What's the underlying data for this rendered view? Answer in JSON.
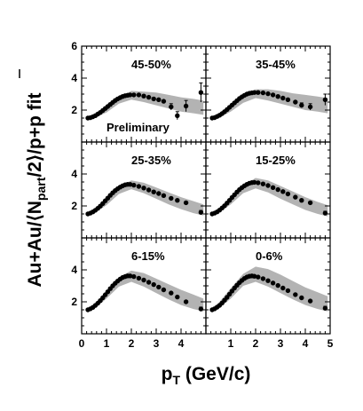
{
  "figure": {
    "ylabel_main": "Au+Au/⟨N",
    "ylabel_sub": "part",
    "ylabel_tail": "/2⟩/p+p fit",
    "xlabel_main": "p",
    "xlabel_sub": "T",
    "xlabel_tail": " (GeV/c)",
    "annotation": "Preliminary"
  },
  "chart_data": {
    "type": "scatter",
    "layout": "3 rows x 2 columns, shared axes",
    "xlabel": "pT (GeV/c)",
    "ylabel": "Au+Au/⟨Npart/2⟩/p+p fit",
    "xlim": [
      0,
      5
    ],
    "ylim": [
      0,
      6
    ],
    "x_ticks": [
      0,
      1,
      2,
      3,
      4,
      5
    ],
    "y_ticks": [
      2,
      4,
      6
    ],
    "colors": {
      "points": "#000000",
      "band": "#b3b3b3"
    },
    "panels": [
      {
        "label": "45-50%",
        "x": [
          0.25,
          0.35,
          0.45,
          0.55,
          0.65,
          0.75,
          0.85,
          0.95,
          1.05,
          1.15,
          1.25,
          1.35,
          1.45,
          1.55,
          1.65,
          1.75,
          1.85,
          1.95,
          2.1,
          2.3,
          2.5,
          2.7,
          2.9,
          3.1,
          3.3,
          3.6,
          3.85,
          4.2,
          4.8
        ],
        "y": [
          1.5,
          1.52,
          1.58,
          1.65,
          1.75,
          1.85,
          1.97,
          2.1,
          2.22,
          2.35,
          2.48,
          2.6,
          2.7,
          2.78,
          2.85,
          2.9,
          2.93,
          2.95,
          2.95,
          2.95,
          2.88,
          2.8,
          2.7,
          2.65,
          2.55,
          2.2,
          1.65,
          2.25,
          3.1
        ],
        "yerr": [
          0,
          0,
          0,
          0,
          0,
          0,
          0,
          0,
          0,
          0,
          0,
          0,
          0,
          0,
          0,
          0,
          0,
          0,
          0,
          0,
          0,
          0,
          0,
          0,
          0,
          0.2,
          0.25,
          0.35,
          0.6
        ],
        "band_x": [
          0.25,
          0.5,
          1.0,
          1.5,
          2.0,
          2.5,
          3.0,
          3.5,
          4.0,
          4.5,
          4.9
        ],
        "band_low": [
          1.4,
          1.5,
          1.85,
          2.4,
          2.65,
          2.5,
          2.3,
          2.1,
          1.9,
          1.8,
          1.7
        ],
        "band_high": [
          1.6,
          1.7,
          2.25,
          2.8,
          3.2,
          3.15,
          3.1,
          2.95,
          2.8,
          2.7,
          2.6
        ]
      },
      {
        "label": "35-45%",
        "x": [
          0.25,
          0.35,
          0.45,
          0.55,
          0.65,
          0.75,
          0.85,
          0.95,
          1.05,
          1.15,
          1.25,
          1.35,
          1.45,
          1.55,
          1.65,
          1.75,
          1.85,
          1.95,
          2.1,
          2.3,
          2.5,
          2.7,
          2.9,
          3.1,
          3.3,
          3.6,
          3.85,
          4.2,
          4.8
        ],
        "y": [
          1.5,
          1.53,
          1.6,
          1.68,
          1.78,
          1.9,
          2.03,
          2.17,
          2.31,
          2.45,
          2.59,
          2.72,
          2.83,
          2.92,
          3.0,
          3.05,
          3.08,
          3.1,
          3.1,
          3.08,
          3.02,
          2.95,
          2.85,
          2.75,
          2.65,
          2.5,
          2.3,
          2.2,
          2.65
        ],
        "yerr": [
          0,
          0,
          0,
          0,
          0,
          0,
          0,
          0,
          0,
          0,
          0,
          0,
          0,
          0,
          0,
          0,
          0,
          0,
          0,
          0,
          0,
          0,
          0,
          0,
          0,
          0,
          0.15,
          0.2,
          0.35
        ],
        "band_x": [
          0.25,
          0.5,
          1.0,
          1.5,
          2.0,
          2.5,
          3.0,
          3.5,
          4.0,
          4.5,
          4.9
        ],
        "band_low": [
          1.4,
          1.5,
          1.9,
          2.45,
          2.75,
          2.6,
          2.4,
          2.2,
          2.0,
          1.9,
          1.8
        ],
        "band_high": [
          1.6,
          1.72,
          2.3,
          2.9,
          3.3,
          3.3,
          3.2,
          3.05,
          2.95,
          2.85,
          2.75
        ]
      },
      {
        "label": "25-35%",
        "x": [
          0.25,
          0.35,
          0.45,
          0.55,
          0.65,
          0.75,
          0.85,
          0.95,
          1.05,
          1.15,
          1.25,
          1.35,
          1.45,
          1.55,
          1.65,
          1.75,
          1.85,
          1.95,
          2.1,
          2.3,
          2.5,
          2.7,
          2.9,
          3.1,
          3.3,
          3.6,
          3.85,
          4.2,
          4.8
        ],
        "y": [
          1.5,
          1.55,
          1.63,
          1.73,
          1.85,
          1.99,
          2.15,
          2.32,
          2.49,
          2.66,
          2.82,
          2.96,
          3.08,
          3.18,
          3.26,
          3.32,
          3.35,
          3.35,
          3.3,
          3.22,
          3.12,
          3.0,
          2.88,
          2.78,
          2.65,
          2.48,
          2.35,
          2.2,
          1.6
        ],
        "yerr": [
          0,
          0,
          0,
          0,
          0,
          0,
          0,
          0,
          0,
          0,
          0,
          0,
          0,
          0,
          0,
          0,
          0,
          0,
          0,
          0,
          0,
          0,
          0,
          0,
          0,
          0,
          0,
          0,
          0.12
        ],
        "band_x": [
          0.25,
          0.5,
          1.0,
          1.5,
          2.0,
          2.5,
          3.0,
          3.5,
          4.0,
          4.5,
          4.9
        ],
        "band_low": [
          1.4,
          1.55,
          2.05,
          2.75,
          3.05,
          2.8,
          2.45,
          2.1,
          1.8,
          1.55,
          1.4
        ],
        "band_high": [
          1.6,
          1.8,
          2.5,
          3.2,
          3.6,
          3.45,
          3.15,
          2.85,
          2.55,
          2.3,
          2.1
        ]
      },
      {
        "label": "15-25%",
        "x": [
          0.25,
          0.35,
          0.45,
          0.55,
          0.65,
          0.75,
          0.85,
          0.95,
          1.05,
          1.15,
          1.25,
          1.35,
          1.45,
          1.55,
          1.65,
          1.75,
          1.85,
          1.95,
          2.1,
          2.3,
          2.5,
          2.7,
          2.9,
          3.1,
          3.3,
          3.6,
          3.85,
          4.2,
          4.8
        ],
        "y": [
          1.5,
          1.55,
          1.63,
          1.74,
          1.87,
          2.01,
          2.18,
          2.35,
          2.53,
          2.7,
          2.87,
          3.02,
          3.15,
          3.26,
          3.35,
          3.42,
          3.46,
          3.48,
          3.45,
          3.38,
          3.28,
          3.15,
          3.02,
          2.9,
          2.75,
          2.55,
          2.35,
          2.2,
          1.55
        ],
        "yerr": [
          0,
          0,
          0,
          0,
          0,
          0,
          0,
          0,
          0,
          0,
          0,
          0,
          0,
          0,
          0,
          0,
          0,
          0,
          0,
          0,
          0,
          0,
          0,
          0,
          0,
          0,
          0,
          0,
          0.12
        ],
        "band_x": [
          0.25,
          0.5,
          1.0,
          1.5,
          2.0,
          2.5,
          3.0,
          3.5,
          4.0,
          4.5,
          4.9
        ],
        "band_low": [
          1.4,
          1.55,
          2.1,
          2.8,
          3.1,
          2.85,
          2.45,
          2.1,
          1.75,
          1.5,
          1.35
        ],
        "band_high": [
          1.6,
          1.82,
          2.55,
          3.3,
          3.75,
          3.6,
          3.25,
          2.9,
          2.55,
          2.25,
          2.05
        ]
      },
      {
        "label": "6-15%",
        "x": [
          0.25,
          0.35,
          0.45,
          0.55,
          0.65,
          0.75,
          0.85,
          0.95,
          1.05,
          1.15,
          1.25,
          1.35,
          1.45,
          1.55,
          1.65,
          1.75,
          1.85,
          1.95,
          2.1,
          2.3,
          2.5,
          2.7,
          2.9,
          3.1,
          3.3,
          3.6,
          3.85,
          4.2,
          4.8
        ],
        "y": [
          1.5,
          1.56,
          1.65,
          1.77,
          1.91,
          2.07,
          2.25,
          2.44,
          2.63,
          2.82,
          3.0,
          3.16,
          3.3,
          3.42,
          3.52,
          3.58,
          3.62,
          3.62,
          3.58,
          3.48,
          3.36,
          3.22,
          3.08,
          2.92,
          2.75,
          2.55,
          2.3,
          2.0,
          1.55
        ],
        "yerr": [
          0,
          0,
          0,
          0,
          0,
          0,
          0,
          0,
          0,
          0,
          0,
          0,
          0,
          0,
          0,
          0,
          0,
          0,
          0,
          0,
          0,
          0,
          0,
          0,
          0,
          0,
          0,
          0,
          0.12
        ],
        "band_x": [
          0.25,
          0.5,
          1.0,
          1.5,
          2.0,
          2.5,
          3.0,
          3.5,
          4.0,
          4.5,
          4.9
        ],
        "band_low": [
          1.4,
          1.55,
          2.2,
          2.95,
          3.25,
          2.95,
          2.55,
          2.15,
          1.8,
          1.55,
          1.4
        ],
        "band_high": [
          1.62,
          1.85,
          2.7,
          3.55,
          3.95,
          3.8,
          3.45,
          3.1,
          2.75,
          2.45,
          2.2
        ]
      },
      {
        "label": "0-6%",
        "x": [
          0.25,
          0.35,
          0.45,
          0.55,
          0.65,
          0.75,
          0.85,
          0.95,
          1.05,
          1.15,
          1.25,
          1.35,
          1.45,
          1.55,
          1.65,
          1.75,
          1.85,
          1.95,
          2.1,
          2.3,
          2.5,
          2.7,
          2.9,
          3.1,
          3.3,
          3.6,
          3.85,
          4.2,
          4.8
        ],
        "y": [
          1.5,
          1.56,
          1.66,
          1.78,
          1.93,
          2.1,
          2.28,
          2.48,
          2.67,
          2.86,
          3.04,
          3.2,
          3.34,
          3.46,
          3.55,
          3.6,
          3.62,
          3.6,
          3.55,
          3.45,
          3.32,
          3.18,
          3.02,
          2.86,
          2.7,
          2.45,
          2.25,
          2.05,
          1.6
        ],
        "yerr": [
          0,
          0,
          0,
          0,
          0,
          0,
          0,
          0,
          0,
          0,
          0,
          0,
          0,
          0,
          0,
          0,
          0,
          0,
          0,
          0,
          0,
          0,
          0,
          0,
          0,
          0,
          0,
          0,
          0.12
        ],
        "band_x": [
          0.25,
          0.5,
          1.0,
          1.5,
          2.0,
          2.5,
          3.0,
          3.5,
          4.0,
          4.5,
          4.9
        ],
        "band_low": [
          1.4,
          1.55,
          2.2,
          3.0,
          3.25,
          2.95,
          2.55,
          2.15,
          1.8,
          1.55,
          1.4
        ],
        "band_high": [
          1.65,
          1.9,
          2.85,
          3.75,
          4.2,
          4.05,
          3.7,
          3.3,
          2.9,
          2.6,
          2.35
        ]
      }
    ]
  }
}
